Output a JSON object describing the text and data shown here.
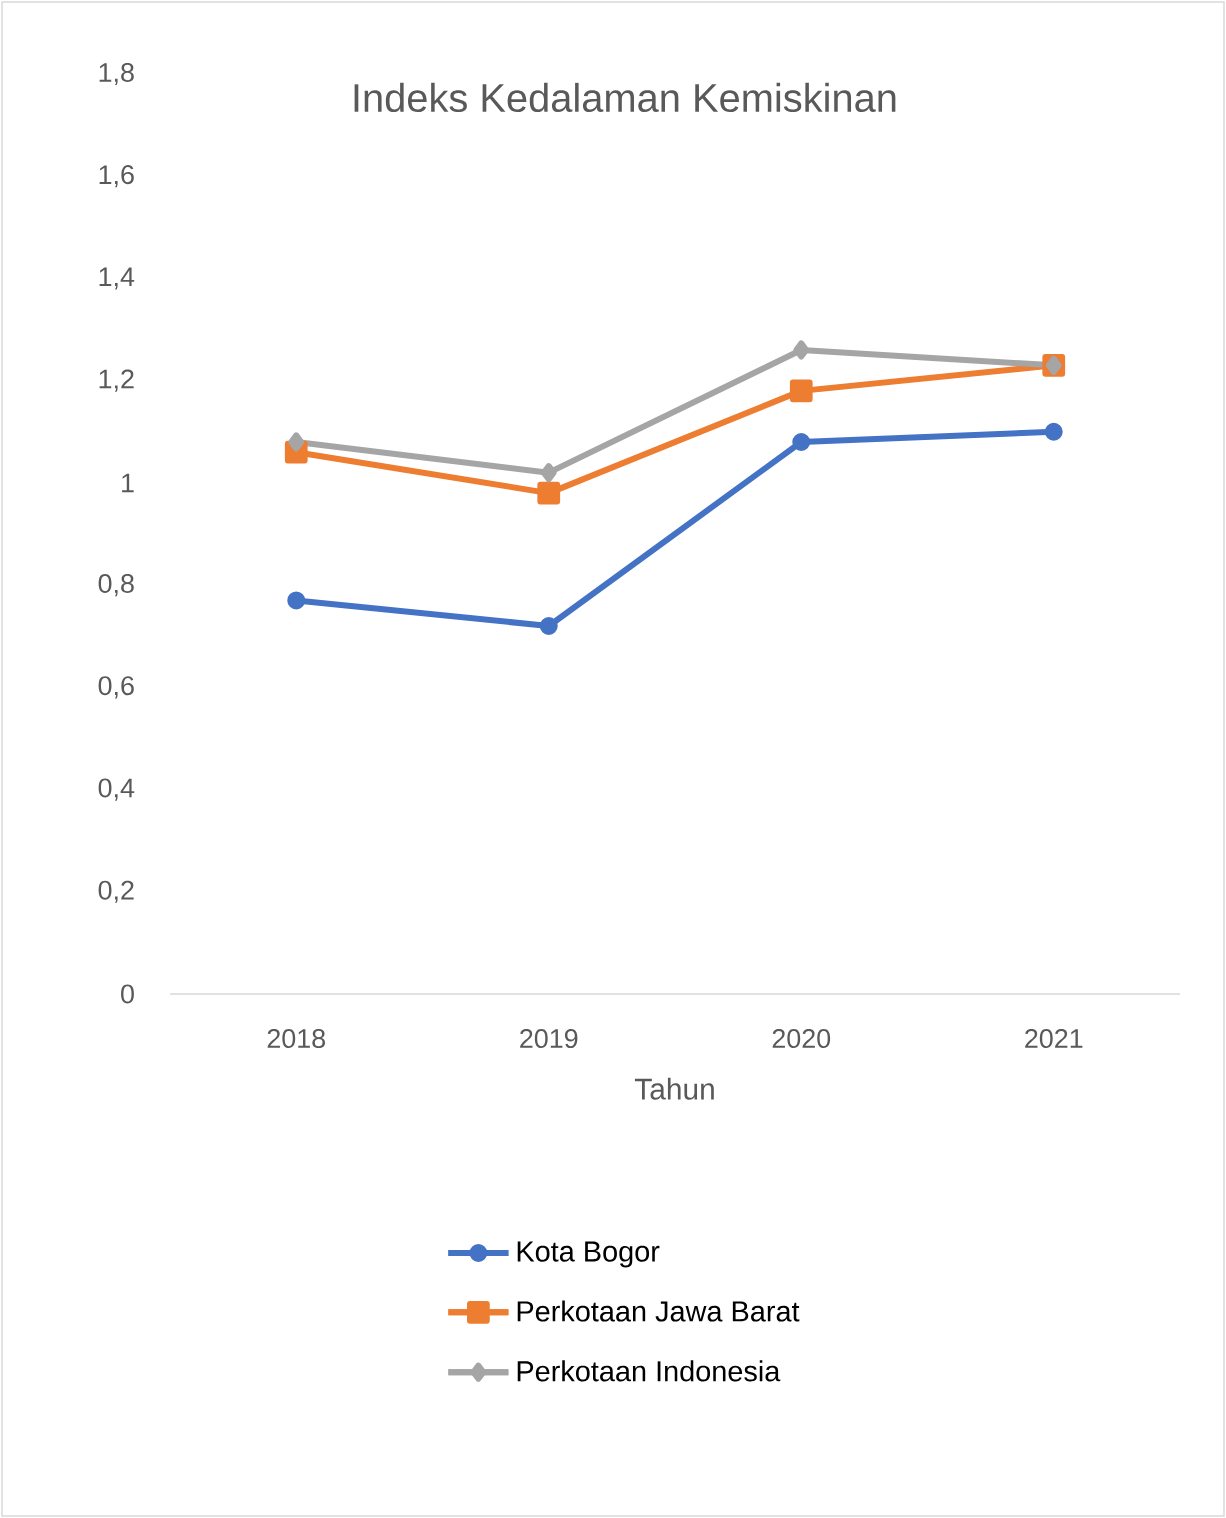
{
  "chart_data": {
    "type": "line",
    "title": "Indeks Kedalaman Kemiskinan",
    "xlabel": "Tahun",
    "categories": [
      "2018",
      "2019",
      "2020",
      "2021"
    ],
    "series": [
      {
        "name": "Kota Bogor",
        "color": "#4472c4",
        "marker": "circle",
        "values": [
          0.77,
          0.72,
          1.08,
          1.1
        ]
      },
      {
        "name": "Perkotaan Jawa Barat",
        "color": "#ed7d31",
        "marker": "square",
        "values": [
          1.06,
          0.98,
          1.18,
          1.23
        ]
      },
      {
        "name": "Perkotaan Indonesia",
        "color": "#a5a5a5",
        "marker": "diamond",
        "values": [
          1.08,
          1.02,
          1.26,
          1.23
        ]
      }
    ],
    "ylim": [
      0,
      1.8
    ],
    "yticks": [
      0,
      {
        "value": 0.2,
        "label": "0,2"
      },
      {
        "value": 0.4,
        "label": "0,4"
      },
      {
        "value": 0.6,
        "label": "0,6"
      },
      {
        "value": 0.8,
        "label": "0,8"
      },
      1,
      {
        "value": 1.2,
        "label": "1,2"
      },
      {
        "value": 1.4,
        "label": "1,4"
      },
      {
        "value": 1.6,
        "label": "1,6"
      },
      {
        "value": 1.8,
        "label": "1,8"
      }
    ],
    "grid": false,
    "legend": "bottom",
    "line_style": "solid"
  }
}
